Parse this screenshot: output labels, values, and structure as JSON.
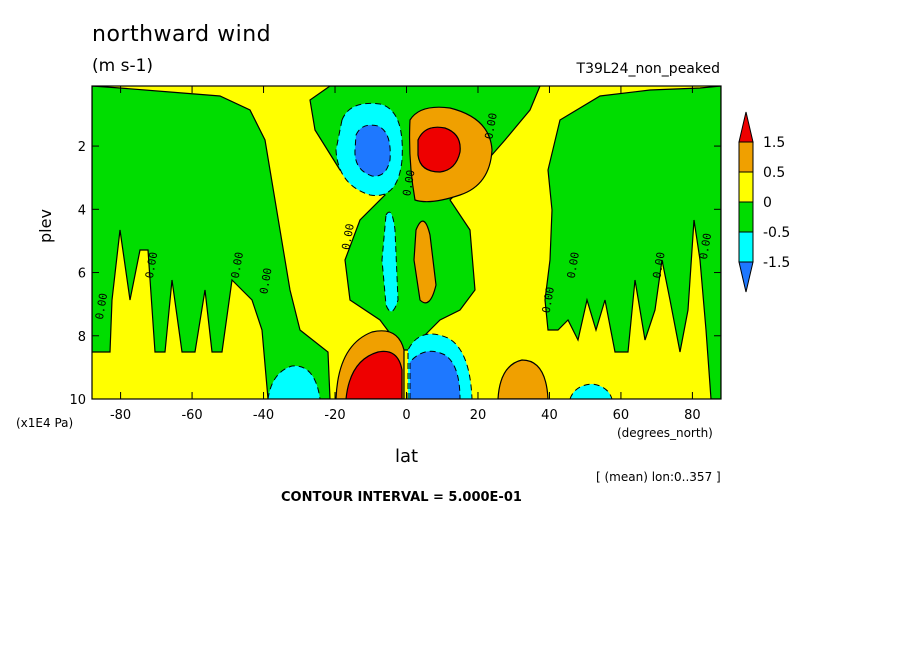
{
  "chart_data": {
    "type": "heatmap",
    "title": "northward wind",
    "units": "(m s-1)",
    "run_label": "T39L24_non_peaked",
    "xlabel": "lat",
    "x_units": "(degrees_north)",
    "ylabel": "plev",
    "y_multiplier": "(x1E4 Pa)",
    "x_ticks": [
      -80,
      -60,
      -40,
      -20,
      0,
      20,
      40,
      60,
      80
    ],
    "x_tick_labels": [
      "-80",
      "-60",
      "-40",
      "-20",
      "0",
      "20",
      "40",
      "60",
      "80"
    ],
    "y_ticks": [
      2,
      4,
      6,
      8,
      10
    ],
    "y_tick_labels": [
      "2",
      "4",
      "6",
      "8",
      "10"
    ],
    "xlim": [
      -88,
      88
    ],
    "ylim": [
      0.1,
      10
    ],
    "y_inverted": true,
    "average_note": "[ (mean) lon:0..357 ]",
    "contour_interval_text": "CONTOUR INTERVAL = 5.000E-01",
    "contour_labels": [
      "0.00"
    ],
    "colorbar": {
      "levels": [
        "1.5",
        "0.5",
        "0",
        "-0.5",
        "-1.5"
      ],
      "colors": [
        "#ee0000",
        "#f0a000",
        "#ffff00",
        "#00dd00",
        "#00ffff",
        "#1e78ff"
      ]
    },
    "features": [
      {
        "lat": -8,
        "plev": 2.2,
        "value": -1.5,
        "kind": "min"
      },
      {
        "lat": 9,
        "plev": 2.2,
        "value": 1.5,
        "kind": "max"
      },
      {
        "lat": -8,
        "plev": 9.5,
        "value": 1.5,
        "kind": "max"
      },
      {
        "lat": 7,
        "plev": 9.5,
        "value": -1.5,
        "kind": "min"
      },
      {
        "lat": -28,
        "plev": 9.6,
        "value": -0.5,
        "kind": "min"
      },
      {
        "lat": 30,
        "plev": 9.5,
        "value": 1.0,
        "kind": "max"
      }
    ]
  }
}
